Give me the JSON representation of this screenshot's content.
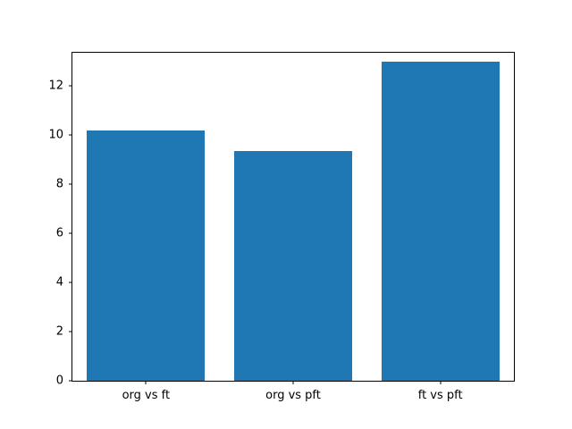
{
  "chart_data": {
    "type": "bar",
    "title": "",
    "xlabel": "",
    "ylabel": "",
    "categories": [
      "org vs ft",
      "org vs pft",
      "ft vs pft"
    ],
    "values": [
      10.2,
      9.35,
      13.0
    ],
    "yticks": [
      0,
      2,
      4,
      6,
      8,
      10,
      12
    ],
    "ylim": [
      0,
      13.35
    ],
    "bar_color": "#1f77b4",
    "bar_width_fraction": 0.8,
    "grid": false,
    "legend": null
  }
}
